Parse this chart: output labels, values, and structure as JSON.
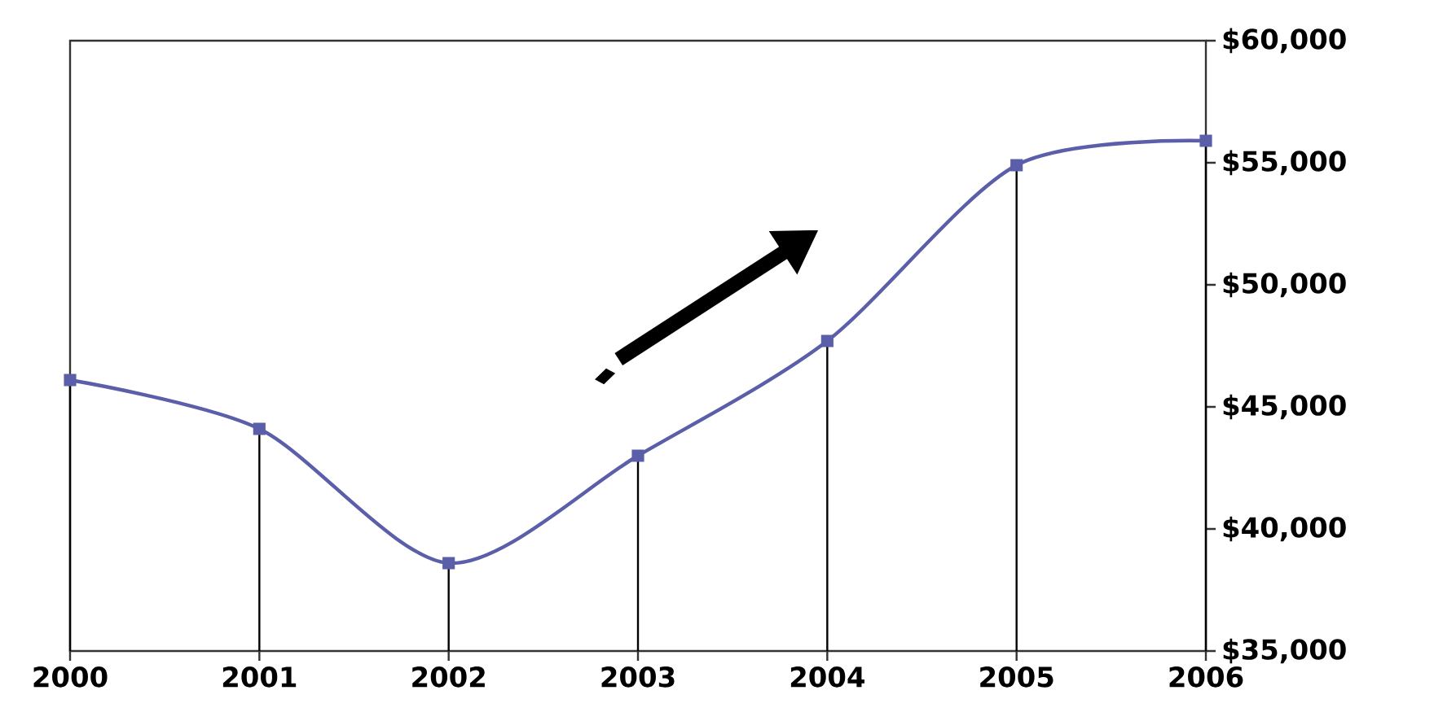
{
  "chart_data": {
    "type": "line",
    "x": [
      2000,
      2001,
      2002,
      2003,
      2004,
      2005,
      2006
    ],
    "series": [
      {
        "color": "#5b5ea8",
        "marker": "none",
        "values": [
          46100,
          44100,
          38600,
          43000,
          47700,
          54900,
          55900
        ]
      },
      {
        "type": "lollipop",
        "color": "#5b5ea8",
        "values": [
          46100,
          44100,
          38600,
          43000,
          47700,
          54900,
          55900
        ]
      }
    ],
    "xlim": [
      2000,
      2006
    ],
    "xticks": [
      2000,
      2001,
      2002,
      2003,
      2004,
      2005,
      2006
    ],
    "ylim": [
      35000,
      60000
    ],
    "yticks": [
      {
        "value": 35000,
        "label": "$35,000"
      },
      {
        "value": 40000,
        "label": "$40,000"
      },
      {
        "value": 45000,
        "label": "$45,000"
      },
      {
        "value": 50000,
        "label": "$50,000"
      },
      {
        "value": 55000,
        "label": "$55,000"
      },
      {
        "value": 60000,
        "label": "$60,000"
      }
    ],
    "marker": "square",
    "line_style": "solid"
  }
}
